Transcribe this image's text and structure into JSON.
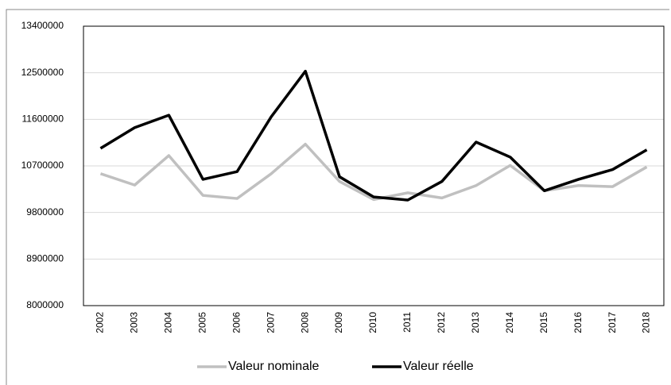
{
  "chart_data": {
    "type": "line",
    "categories": [
      "2002",
      "2003",
      "2004",
      "2005",
      "2006",
      "2007",
      "2008",
      "2009",
      "2010",
      "2011",
      "2012",
      "2013",
      "2014",
      "2015",
      "2016",
      "2017",
      "2018"
    ],
    "series": [
      {
        "name": "Valeur nominale",
        "color": "#c0c0c0",
        "values": [
          10550000,
          10330000,
          10900000,
          10130000,
          10070000,
          10550000,
          11120000,
          10400000,
          10050000,
          10180000,
          10080000,
          10320000,
          10710000,
          10220000,
          10320000,
          10300000,
          10680000
        ]
      },
      {
        "name": "Valeur réelle",
        "color": "#000000",
        "values": [
          11040000,
          11440000,
          11680000,
          10440000,
          10590000,
          11650000,
          12530000,
          10490000,
          10100000,
          10040000,
          10400000,
          11160000,
          10870000,
          10220000,
          10440000,
          10630000,
          11010000
        ]
      }
    ],
    "ylim": [
      8000000,
      13400000
    ],
    "yticks": [
      8000000,
      8900000,
      9800000,
      10700000,
      11600000,
      12500000,
      13400000
    ],
    "grid": true,
    "legend": "bottom"
  }
}
